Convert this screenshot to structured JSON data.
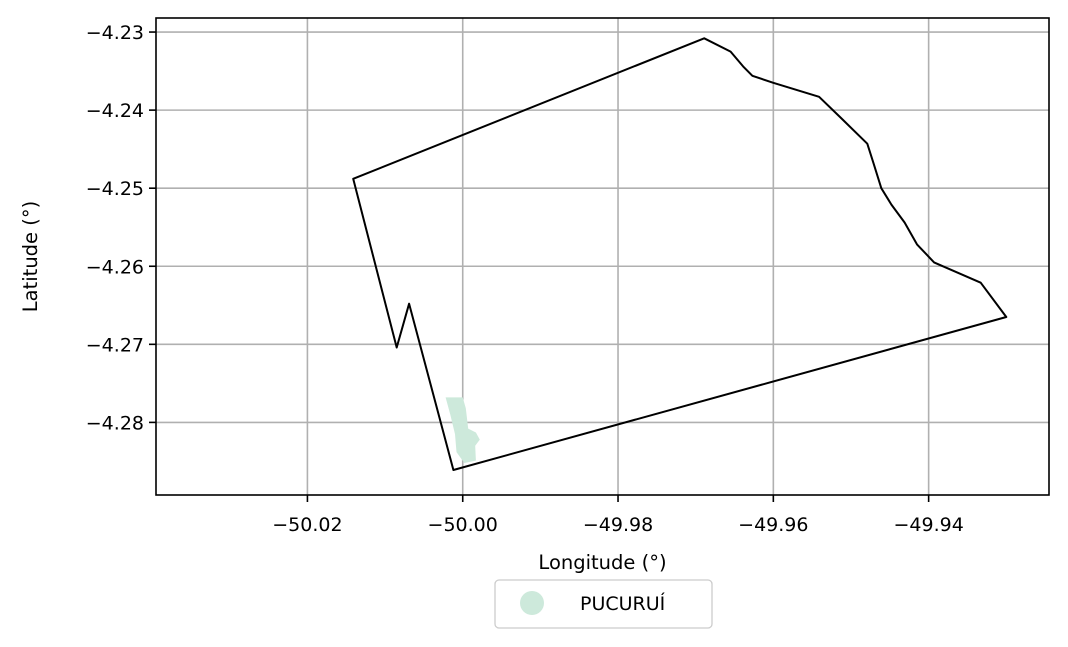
{
  "chart_data": {
    "type": "map",
    "xlabel": "Longitude (°)",
    "ylabel": "Latitude (°)",
    "xlim": [
      -50.0395,
      -49.9245
    ],
    "ylim": [
      -4.2893,
      -4.2282
    ],
    "grid": true,
    "x_ticks": [
      -50.02,
      -50.0,
      -49.98,
      -49.96,
      -49.94
    ],
    "x_tick_labels": [
      "−50.02",
      "−50.00",
      "−49.98",
      "−49.96",
      "−49.94"
    ],
    "y_ticks": [
      -4.23,
      -4.24,
      -4.25,
      -4.26,
      -4.27,
      -4.28
    ],
    "y_tick_labels": [
      "−4.23",
      "−4.24",
      "−4.25",
      "−4.26",
      "−4.27",
      "−4.28"
    ],
    "boundary": {
      "color": "#000000",
      "points": [
        [
          -50.0141,
          -4.2488
        ],
        [
          -50.0085,
          -4.2704
        ],
        [
          -50.0069,
          -4.2648
        ],
        [
          -50.0012,
          -4.2861
        ],
        [
          -49.93,
          -4.2665
        ],
        [
          -49.9333,
          -4.2621
        ],
        [
          -49.9393,
          -4.2595
        ],
        [
          -49.9415,
          -4.2572
        ],
        [
          -49.9431,
          -4.2544
        ],
        [
          -49.9448,
          -4.2521
        ],
        [
          -49.9461,
          -4.25
        ],
        [
          -49.9471,
          -4.2468
        ],
        [
          -49.9479,
          -4.2443
        ],
        [
          -49.9513,
          -4.241
        ],
        [
          -49.9541,
          -4.2383
        ],
        [
          -49.96,
          -4.2365
        ],
        [
          -49.9627,
          -4.2356
        ],
        [
          -49.9639,
          -4.2344
        ],
        [
          -49.9655,
          -4.2325
        ],
        [
          -49.9689,
          -4.2308
        ],
        [
          -50.0141,
          -4.2488
        ]
      ]
    },
    "urban_area": {
      "color": "#cde9db",
      "points": [
        [
          -50.0022,
          -4.2768
        ],
        [
          -50.0,
          -4.2768
        ],
        [
          -49.9996,
          -4.2782
        ],
        [
          -49.9993,
          -4.2808
        ],
        [
          -49.9983,
          -4.2813
        ],
        [
          -49.9978,
          -4.2822
        ],
        [
          -49.9984,
          -4.283
        ],
        [
          -49.9983,
          -4.2849
        ],
        [
          -49.9998,
          -4.2852
        ],
        [
          -50.0008,
          -4.2838
        ],
        [
          -50.001,
          -4.2815
        ],
        [
          -50.0016,
          -4.279
        ],
        [
          -50.0022,
          -4.2768
        ]
      ]
    },
    "legend": {
      "position": "bottom-center",
      "entries": [
        {
          "label": "PUCURUÍ",
          "color": "#cde9db"
        }
      ]
    }
  }
}
